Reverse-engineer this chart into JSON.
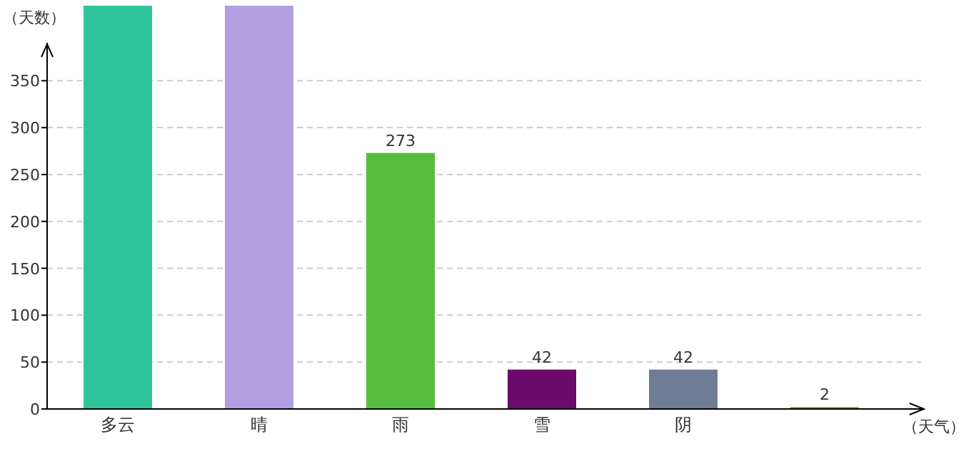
{
  "chart_data": {
    "type": "bar",
    "xlabel": "（天气）",
    "ylabel": "（天数）",
    "categories": [
      "多云",
      "晴",
      "雨",
      "雪",
      "阴",
      null
    ],
    "values": [
      430,
      430,
      273,
      42,
      42,
      2
    ],
    "colors": [
      "#2ec59a",
      "#b19fe2",
      "#57bd3f",
      "#6b0a6b",
      "#6e7c96",
      "#6f9a2e"
    ],
    "value_labels": [
      null,
      null,
      "273",
      "42",
      "42",
      "2"
    ],
    "ylim": [
      0,
      430
    ],
    "yticks": [
      0,
      50,
      100,
      150,
      200,
      250,
      300,
      350
    ],
    "grid": "y"
  }
}
